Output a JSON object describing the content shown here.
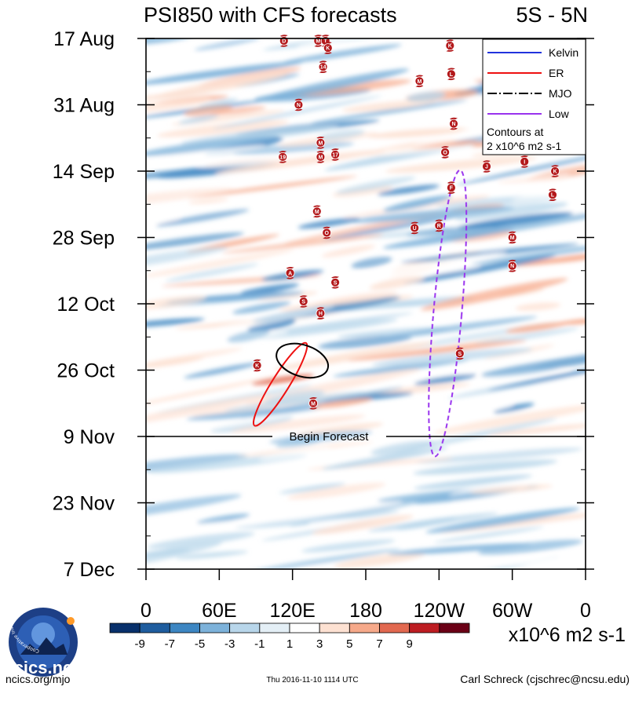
{
  "chart_data": {
    "type": "heatmap",
    "title": "PSI850 with CFS forecasts",
    "region_label": "5S - 5N",
    "variable": "PSI850",
    "x_ticks": [
      "0",
      "60E",
      "120E",
      "180",
      "120W",
      "60W",
      "0"
    ],
    "x_values": [
      0,
      60,
      120,
      180,
      240,
      300,
      360
    ],
    "xlim": [
      0,
      360
    ],
    "y_ticks": [
      "17 Aug",
      "31 Aug",
      "14 Sep",
      "28 Sep",
      "12 Oct",
      "26 Oct",
      "9 Nov",
      "23 Nov",
      "7 Dec"
    ],
    "y_day_offsets": [
      0,
      14,
      28,
      42,
      56,
      70,
      84,
      98,
      112
    ],
    "forecast_start_day": 84,
    "forecast_label": "Begin Forecast",
    "colorbar": {
      "levels": [
        "-9",
        "-7",
        "-5",
        "-3",
        "-1",
        "1",
        "3",
        "5",
        "7",
        "9"
      ],
      "colors": [
        "#08306b",
        "#1f5d9e",
        "#3d86c2",
        "#7db2da",
        "#b8d6ea",
        "#e4eff6",
        "#ffffff",
        "#fde1d2",
        "#f6a98a",
        "#e26950",
        "#bd1d22",
        "#6b0016"
      ],
      "units": "x10^6 m2 s-1"
    },
    "legend": {
      "items": [
        {
          "label": "Kelvin",
          "color": "#2233dd",
          "style": "solid"
        },
        {
          "label": "ER",
          "color": "#ee1111",
          "style": "solid"
        },
        {
          "label": "MJO",
          "color": "#000000",
          "style": "dashdot"
        },
        {
          "label": "Low",
          "color": "#9933ee",
          "style": "solid"
        }
      ],
      "note_line1": "Contours at",
      "note_line2": "2 x10^6 m2 s-1"
    },
    "contours": [
      {
        "type": "ER",
        "lon_center": 110,
        "day_center": 73,
        "sign": "positive"
      },
      {
        "type": "MJO",
        "lon_center": 128,
        "day_center": 68,
        "sign": "positive"
      },
      {
        "type": "Low",
        "lon_center": 247,
        "day_center": 58,
        "sign": "negative"
      }
    ],
    "storms": [
      {
        "letter": "D",
        "lon": 113,
        "day": 0.5
      },
      {
        "letter": "M",
        "lon": 141,
        "day": 0.5
      },
      {
        "letter": "T",
        "lon": 147,
        "day": 0.5
      },
      {
        "letter": "K",
        "lon": 149,
        "day": 2
      },
      {
        "letter": "K",
        "lon": 249,
        "day": 1.5
      },
      {
        "letter": "14",
        "lon": 145,
        "day": 6
      },
      {
        "letter": "L",
        "lon": 250,
        "day": 7.5
      },
      {
        "letter": "M",
        "lon": 224,
        "day": 9
      },
      {
        "letter": "N",
        "lon": 125,
        "day": 14
      },
      {
        "letter": "N",
        "lon": 252,
        "day": 18
      },
      {
        "letter": "M",
        "lon": 143,
        "day": 22
      },
      {
        "letter": "M",
        "lon": 143,
        "day": 25
      },
      {
        "letter": "17",
        "lon": 155,
        "day": 24.5
      },
      {
        "letter": "19",
        "lon": 112,
        "day": 25
      },
      {
        "letter": "O",
        "lon": 245,
        "day": 24
      },
      {
        "letter": "J",
        "lon": 279,
        "day": 27
      },
      {
        "letter": "I",
        "lon": 310,
        "day": 26
      },
      {
        "letter": "K",
        "lon": 335,
        "day": 28
      },
      {
        "letter": "F",
        "lon": 250,
        "day": 31.5
      },
      {
        "letter": "L",
        "lon": 333,
        "day": 33
      },
      {
        "letter": "M",
        "lon": 140,
        "day": 36.5
      },
      {
        "letter": "R",
        "lon": 240,
        "day": 39.5
      },
      {
        "letter": "U",
        "lon": 220,
        "day": 40
      },
      {
        "letter": "O",
        "lon": 148,
        "day": 41
      },
      {
        "letter": "M",
        "lon": 300,
        "day": 42
      },
      {
        "letter": "N",
        "lon": 300,
        "day": 48
      },
      {
        "letter": "A",
        "lon": 118,
        "day": 49.5
      },
      {
        "letter": "S",
        "lon": 155,
        "day": 51.5
      },
      {
        "letter": "S",
        "lon": 129,
        "day": 55.5
      },
      {
        "letter": "H",
        "lon": 143,
        "day": 58
      },
      {
        "letter": "S",
        "lon": 257,
        "day": 66.5
      },
      {
        "letter": "K",
        "lon": 91,
        "day": 69
      },
      {
        "letter": "M",
        "lon": 137,
        "day": 77
      }
    ]
  },
  "footer": {
    "logo_text": "cics.nc",
    "logo_ring_text": "Cooperative Institute for Climate and Satellites",
    "website": "ncics.org/mjo",
    "timestamp": "Thu 2016-11-10 1114 UTC",
    "author": "Carl Schreck (cjschrec@ncsu.edu)"
  }
}
